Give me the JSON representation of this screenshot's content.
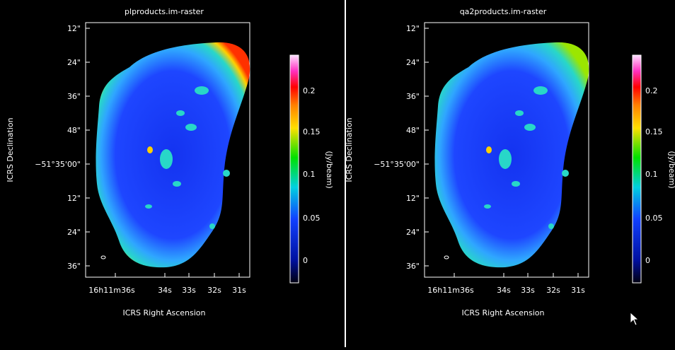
{
  "panels": [
    {
      "title": "plproducts.im-raster",
      "ylabel": "ICRS Declination",
      "xlabel": "ICRS Right Ascension",
      "yticks": [
        "12\"",
        "24\"",
        "36\"",
        "48\"",
        "−51°35'00\"",
        "12\"",
        "24\"",
        "36\""
      ],
      "xticks": [
        "16h11m36s",
        "34s",
        "33s",
        "32s",
        "31s"
      ],
      "colorbar_ticks": [
        "0.2",
        "0.15",
        "0.1",
        "0.05",
        "0"
      ],
      "colorbar_label": "(Jy/beam)"
    },
    {
      "title": "qa2products.im-raster",
      "ylabel": "ICRS Declination",
      "xlabel": "ICRS Right Ascension",
      "yticks": [
        "12\"",
        "24\"",
        "36\"",
        "48\"",
        "−51°35'00\"",
        "12\"",
        "24\"",
        "36\""
      ],
      "xticks": [
        "16h11m36s",
        "34s",
        "33s",
        "32s",
        "31s"
      ],
      "colorbar_ticks": [
        "0.2",
        "0.15",
        "0.1",
        "0.05",
        "0"
      ],
      "colorbar_label": "(Jy/beam)"
    }
  ],
  "colors": {
    "background": "#000000",
    "frame": "#ffffff",
    "map_core": "#1a3cff",
    "map_mid": "#00c8e6",
    "map_edge": "#ffd400"
  },
  "icons": [
    "beam-ellipse-icon",
    "mouse-pointer-icon"
  ]
}
